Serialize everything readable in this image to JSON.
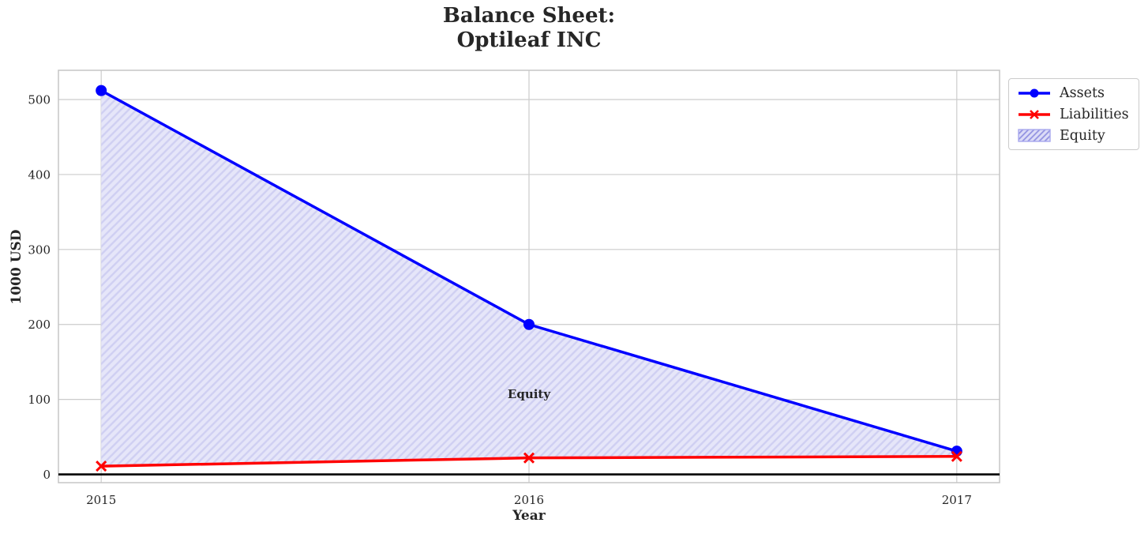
{
  "chart_data": {
    "type": "line",
    "title": "Balance Sheet:\nOptileaf INC",
    "title_lines": [
      "Balance Sheet:",
      "Optileaf INC"
    ],
    "xlabel": "Year",
    "ylabel": "1000 USD",
    "x": [
      2015,
      2016,
      2017
    ],
    "series": [
      {
        "name": "Assets",
        "color": "#0000ff",
        "marker": "circle",
        "line_width": 3.5,
        "values": [
          512,
          200,
          31
        ]
      },
      {
        "name": "Liabilities",
        "color": "#ff0000",
        "marker": "x",
        "line_width": 3.5,
        "values": [
          11,
          22,
          24
        ]
      }
    ],
    "fill_between": {
      "name": "Equity",
      "upper_series": "Assets",
      "lower_series": "Liabilities",
      "fill_color": "#e6e6f9",
      "hatch": "///",
      "hatch_color": "#cfcff2"
    },
    "annotation": {
      "text": "Equity",
      "x": 2016,
      "y": 109,
      "color": "#0000cd"
    },
    "axhline": {
      "y": 0,
      "color": "#000000"
    },
    "xticks": [
      2015,
      2016,
      2017
    ],
    "yticks": [
      0,
      100,
      200,
      300,
      400,
      500
    ],
    "xlim": [
      2014.9,
      2017.1
    ],
    "ylim": [
      -11,
      539
    ],
    "grid": true,
    "background": "#ffffff",
    "grid_color": "#cccccc",
    "text_color": "#262626",
    "legend": {
      "position": "upper-right-outside",
      "entries": [
        {
          "label": "Assets",
          "type": "line-circle",
          "color": "#0000ff"
        },
        {
          "label": "Liabilities",
          "type": "line-x",
          "color": "#ff0000"
        },
        {
          "label": "Equity",
          "type": "hatched-patch",
          "color": "#b4b4f0"
        }
      ]
    }
  }
}
